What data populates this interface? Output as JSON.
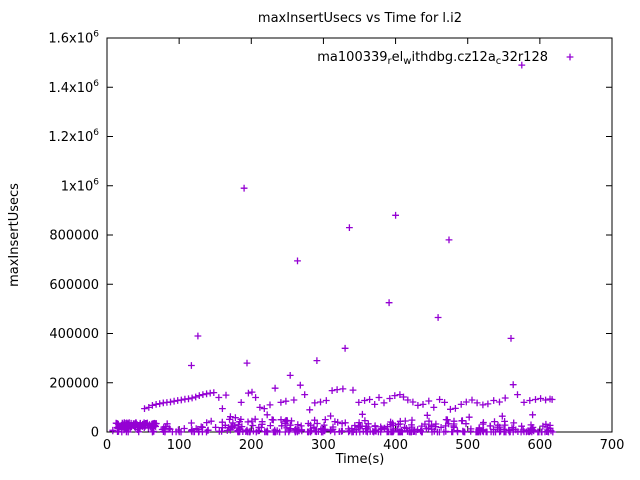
{
  "chart_data": {
    "type": "scatter",
    "title": "maxInsertUsecs vs Time for l.i2",
    "xlabel": "Time(s)",
    "ylabel": "maxInsertUsecs",
    "x_range": [
      0,
      700
    ],
    "y_range": [
      0,
      1600000
    ],
    "x_ticks": [
      0,
      100,
      200,
      300,
      400,
      500,
      600,
      700
    ],
    "y_ticks": [
      {
        "v": 0,
        "label": "0"
      },
      {
        "v": 200000,
        "label": "200000"
      },
      {
        "v": 400000,
        "label": "400000"
      },
      {
        "v": 600000,
        "label": "600000"
      },
      {
        "v": 800000,
        "label": "800000"
      },
      {
        "v": 1000000,
        "label": "1x10^6"
      },
      {
        "v": 1200000,
        "label": "1.2x10^6"
      },
      {
        "v": 1400000,
        "label": "1.4x10^6"
      },
      {
        "v": 1600000,
        "label": "1.6x10^6"
      }
    ],
    "grid": false,
    "legend_position": "top-right-inside",
    "legend": {
      "label_plain": "ma100339_rel_withdbg.cz12a_c32r128",
      "label_parts": [
        {
          "t": "ma100339"
        },
        {
          "t": "r",
          "sub": true
        },
        {
          "t": "el"
        },
        {
          "t": "w",
          "sub": true
        },
        {
          "t": "ithdbg.cz12a"
        },
        {
          "t": "c",
          "sub": true
        },
        {
          "t": "32r128"
        }
      ],
      "marker": "plus"
    },
    "marker_color": "#9400d3",
    "points": [
      [
        575,
        1490000
      ],
      [
        190,
        990000
      ],
      [
        400,
        880000
      ],
      [
        336,
        830000
      ],
      [
        474,
        780000
      ],
      [
        264,
        695000
      ],
      [
        391,
        525000
      ],
      [
        459,
        465000
      ],
      [
        126,
        390000
      ],
      [
        560,
        380000
      ],
      [
        330,
        340000
      ],
      [
        291,
        290000
      ],
      [
        194,
        280000
      ],
      [
        117,
        270000
      ],
      [
        254,
        230000
      ],
      [
        52,
        95000
      ],
      [
        58,
        100000
      ],
      [
        63,
        108000
      ],
      [
        68,
        112000
      ],
      [
        73,
        115000
      ],
      [
        78,
        118000
      ],
      [
        83,
        120000
      ],
      [
        88,
        122000
      ],
      [
        93,
        125000
      ],
      [
        98,
        128000
      ],
      [
        103,
        130000
      ],
      [
        108,
        133000
      ],
      [
        113,
        135000
      ],
      [
        118,
        138000
      ],
      [
        123,
        142000
      ],
      [
        128,
        148000
      ],
      [
        133,
        152000
      ],
      [
        138,
        155000
      ],
      [
        143,
        158000
      ],
      [
        148,
        160000
      ],
      [
        155,
        140000
      ],
      [
        160,
        95000
      ],
      [
        165,
        150000
      ],
      [
        171,
        62000
      ],
      [
        178,
        58000
      ],
      [
        186,
        120000
      ],
      [
        196,
        158000
      ],
      [
        201,
        162000
      ],
      [
        206,
        140000
      ],
      [
        212,
        100000
      ],
      [
        218,
        95000
      ],
      [
        222,
        70000
      ],
      [
        226,
        110000
      ],
      [
        233,
        178000
      ],
      [
        241,
        120000
      ],
      [
        248,
        125000
      ],
      [
        259,
        130000
      ],
      [
        268,
        190000
      ],
      [
        274,
        152000
      ],
      [
        281,
        90000
      ],
      [
        288,
        118000
      ],
      [
        296,
        122000
      ],
      [
        304,
        128000
      ],
      [
        310,
        65000
      ],
      [
        312,
        168000
      ],
      [
        319,
        172000
      ],
      [
        327,
        175000
      ],
      [
        341,
        170000
      ],
      [
        349,
        120000
      ],
      [
        354,
        72000
      ],
      [
        357,
        128000
      ],
      [
        364,
        132000
      ],
      [
        371,
        112000
      ],
      [
        377,
        140000
      ],
      [
        384,
        118000
      ],
      [
        392,
        136000
      ],
      [
        399,
        148000
      ],
      [
        406,
        152000
      ],
      [
        411,
        142000
      ],
      [
        417,
        130000
      ],
      [
        424,
        122000
      ],
      [
        431,
        108000
      ],
      [
        438,
        112000
      ],
      [
        444,
        68000
      ],
      [
        446,
        126000
      ],
      [
        453,
        100000
      ],
      [
        461,
        132000
      ],
      [
        468,
        120000
      ],
      [
        476,
        92000
      ],
      [
        483,
        96000
      ],
      [
        491,
        112000
      ],
      [
        498,
        122000
      ],
      [
        502,
        60000
      ],
      [
        506,
        130000
      ],
      [
        513,
        118000
      ],
      [
        521,
        110000
      ],
      [
        528,
        114000
      ],
      [
        536,
        128000
      ],
      [
        544,
        122000
      ],
      [
        548,
        64000
      ],
      [
        552,
        138000
      ],
      [
        563,
        192000
      ],
      [
        569,
        152000
      ],
      [
        578,
        120000
      ],
      [
        586,
        128000
      ],
      [
        590,
        70000
      ],
      [
        594,
        132000
      ],
      [
        601,
        136000
      ],
      [
        608,
        130000
      ],
      [
        614,
        134000
      ],
      [
        617,
        132000
      ]
    ],
    "baseline_band": {
      "seed": 12345,
      "count": 400,
      "x_min": 8,
      "x_max": 618,
      "y_max": 52000
    },
    "dense_band": {
      "seed": 999,
      "count": 85,
      "x_min": 10,
      "x_max": 68,
      "y_min": 14000,
      "y_max": 38000
    }
  }
}
